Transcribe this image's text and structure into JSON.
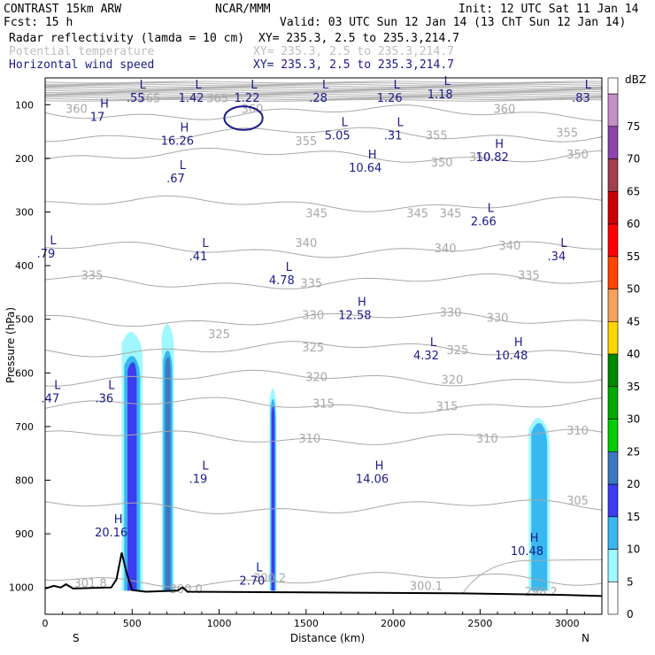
{
  "header": {
    "left1": "CONTRAST 15km ARW",
    "center1": "NCAR/MMM",
    "right1": "Init: 12 UTC Sat 11 Jan 14",
    "left2": "Fcst:    15 h",
    "right2": "Valid: 03 UTC Sun 12 Jan 14 (13 ChT Sun 12 Jan 14)",
    "fields": [
      {
        "name": "Radar reflectivity (lamda = 10 cm)",
        "xy": "XY= 235.3,  2.5 to 235.3,214.7",
        "color": "#000000"
      },
      {
        "name": "Potential temperature",
        "xy": "XY= 235.3,  2.5 to 235.3,214.7",
        "color": "#bdbdbd"
      },
      {
        "name": "Horizontal wind speed",
        "xy": "XY= 235.3,  2.5 to 235.3,214.7",
        "color": "#1a1a8c"
      }
    ]
  },
  "chart_data": {
    "type": "cross-section",
    "xlabel": "Distance (km)",
    "ylabel": "Pressure (hPa)",
    "xlim": [
      0,
      3200
    ],
    "ylim": [
      1050,
      50
    ],
    "x_ticks": [
      "0",
      "500",
      "1000",
      "1500",
      "2000",
      "2500",
      "3000"
    ],
    "y_ticks": [
      "100",
      "200",
      "300",
      "400",
      "500",
      "600",
      "700",
      "800",
      "900",
      "1000"
    ],
    "x_end_labels": {
      "left": "S",
      "right": "N"
    },
    "reflectivity_cells": [
      {
        "x": [
          440,
          560
        ],
        "top_hPa": 525,
        "core_top_hPa": 570,
        "colors": [
          "#9ff8ff",
          "#38b7f0",
          "#3c3cf0"
        ]
      },
      {
        "x": [
          670,
          740
        ],
        "top_hPa": 510,
        "core_top_hPa": 560,
        "colors": [
          "#9ff8ff",
          "#38b7f0",
          "#3c78c0"
        ]
      },
      {
        "x": [
          1290,
          1330
        ],
        "top_hPa": 630,
        "core_top_hPa": 650,
        "colors": [
          "#9ff8ff",
          "#38b7f0",
          "#3c3cf0"
        ]
      },
      {
        "x": [
          2780,
          2900
        ],
        "top_hPa": 685,
        "core_top_hPa": 695,
        "colors": [
          "#9ff8ff",
          "#38b7f0"
        ]
      }
    ],
    "theta_labels": [
      {
        "v": "360",
        "x": 180,
        "p": 115
      },
      {
        "v": "365",
        "x": 600,
        "p": 95
      },
      {
        "v": "365",
        "x": 990,
        "p": 95
      },
      {
        "v": "360",
        "x": 1190,
        "p": 115
      },
      {
        "v": "360",
        "x": 2640,
        "p": 115
      },
      {
        "v": "355",
        "x": 1500,
        "p": 175
      },
      {
        "v": "355",
        "x": 2250,
        "p": 165
      },
      {
        "v": "355",
        "x": 3000,
        "p": 160
      },
      {
        "v": "350",
        "x": 2280,
        "p": 215
      },
      {
        "v": "350",
        "x": 2500,
        "p": 205
      },
      {
        "v": "350",
        "x": 3060,
        "p": 200
      },
      {
        "v": "345",
        "x": 1560,
        "p": 310
      },
      {
        "v": "345",
        "x": 2140,
        "p": 310
      },
      {
        "v": "345",
        "x": 2330,
        "p": 310
      },
      {
        "v": "340",
        "x": 1500,
        "p": 365
      },
      {
        "v": "340",
        "x": 2300,
        "p": 375
      },
      {
        "v": "340",
        "x": 2670,
        "p": 370
      },
      {
        "v": "335",
        "x": 270,
        "p": 425
      },
      {
        "v": "335",
        "x": 1530,
        "p": 440
      },
      {
        "v": "335",
        "x": 2780,
        "p": 425
      },
      {
        "v": "330",
        "x": 1540,
        "p": 500
      },
      {
        "v": "330",
        "x": 2330,
        "p": 495
      },
      {
        "v": "330",
        "x": 2600,
        "p": 505
      },
      {
        "v": "325",
        "x": 1000,
        "p": 535
      },
      {
        "v": "325",
        "x": 1540,
        "p": 560
      },
      {
        "v": "325",
        "x": 2370,
        "p": 565
      },
      {
        "v": "320",
        "x": 1560,
        "p": 615
      },
      {
        "v": "320",
        "x": 2340,
        "p": 620
      },
      {
        "v": "315",
        "x": 1600,
        "p": 665
      },
      {
        "v": "315",
        "x": 2310,
        "p": 670
      },
      {
        "v": "310",
        "x": 1520,
        "p": 730
      },
      {
        "v": "310",
        "x": 2540,
        "p": 730
      },
      {
        "v": "310",
        "x": 3060,
        "p": 715
      },
      {
        "v": "305",
        "x": 3060,
        "p": 845
      },
      {
        "v": "301.8",
        "x": 260,
        "p": 1000
      },
      {
        "v": "300.0",
        "x": 810,
        "p": 1010
      },
      {
        "v": "300.2",
        "x": 1290,
        "p": 990
      },
      {
        "v": "300.1",
        "x": 2190,
        "p": 1005
      },
      {
        "v": "298.2",
        "x": 2850,
        "p": 1015
      }
    ],
    "wind_extrema": [
      {
        "type": "L",
        "v": ".55",
        "x": 520,
        "p": 70
      },
      {
        "type": "L",
        "v": "1.42",
        "x": 840,
        "p": 70
      },
      {
        "type": "L",
        "v": "1.22",
        "x": 1160,
        "p": 70
      },
      {
        "type": "L",
        "v": ".28",
        "x": 1570,
        "p": 70
      },
      {
        "type": "L",
        "v": "1.26",
        "x": 1980,
        "p": 70
      },
      {
        "type": "L",
        "v": "1.18",
        "x": 2270,
        "p": 63
      },
      {
        "type": "L",
        "v": ".83",
        "x": 3080,
        "p": 70
      },
      {
        "type": "H",
        "v": "17",
        "x": 300,
        "p": 105
      },
      {
        "type": "H",
        "v": "16.26",
        "x": 760,
        "p": 150
      },
      {
        "type": "L",
        "v": "5.05",
        "x": 1680,
        "p": 140
      },
      {
        "type": "L",
        "v": ".31",
        "x": 2000,
        "p": 140
      },
      {
        "type": "H",
        "v": "10.82",
        "x": 2570,
        "p": 180
      },
      {
        "type": "H",
        "v": "10.64",
        "x": 1840,
        "p": 200
      },
      {
        "type": "L",
        "v": ".67",
        "x": 750,
        "p": 220
      },
      {
        "type": "L",
        "v": "2.66",
        "x": 2520,
        "p": 300
      },
      {
        "type": "L",
        "v": ".79",
        "x": 5,
        "p": 360
      },
      {
        "type": "L",
        "v": ".41",
        "x": 880,
        "p": 365
      },
      {
        "type": "L",
        "v": ".34",
        "x": 2940,
        "p": 365
      },
      {
        "type": "L",
        "v": "4.78",
        "x": 1360,
        "p": 410
      },
      {
        "type": "H",
        "v": "12.58",
        "x": 1780,
        "p": 475
      },
      {
        "type": "L",
        "v": "4.32",
        "x": 2190,
        "p": 550
      },
      {
        "type": "H",
        "v": "10.48",
        "x": 2680,
        "p": 550
      },
      {
        "type": "L",
        "v": ".47",
        "x": 30,
        "p": 630
      },
      {
        "type": "L",
        "v": ".36",
        "x": 340,
        "p": 630
      },
      {
        "type": "L",
        "v": ".19",
        "x": 880,
        "p": 780
      },
      {
        "type": "H",
        "v": "14.06",
        "x": 1880,
        "p": 780
      },
      {
        "type": "H",
        "v": "20.16",
        "x": 380,
        "p": 880
      },
      {
        "type": "H",
        "v": "10.48",
        "x": 2770,
        "p": 915
      },
      {
        "type": "L",
        "v": "2.70",
        "x": 1190,
        "p": 970
      }
    ],
    "wind_closed_contour": {
      "x_center": 1140,
      "p_center": 125,
      "x_radius": 110,
      "p_radius": 22
    },
    "terrain": [
      [
        0,
        1002
      ],
      [
        50,
        997
      ],
      [
        90,
        1000
      ],
      [
        120,
        994
      ],
      [
        160,
        1002
      ],
      [
        380,
        1000
      ],
      [
        410,
        985
      ],
      [
        440,
        935
      ],
      [
        470,
        975
      ],
      [
        500,
        1005
      ],
      [
        580,
        1008
      ],
      [
        760,
        1006
      ],
      [
        790,
        1000
      ],
      [
        820,
        1008
      ],
      [
        1500,
        1009
      ],
      [
        2400,
        1011
      ],
      [
        3000,
        1014
      ],
      [
        3200,
        1016
      ]
    ],
    "legend": {
      "unit": "dBZ",
      "levels": [
        "0",
        "5",
        "10",
        "15",
        "20",
        "25",
        "30",
        "35",
        "40",
        "45",
        "50",
        "55",
        "60",
        "65",
        "70",
        "75"
      ],
      "colors": [
        "#ffffff",
        "#9ff8ff",
        "#38b7f0",
        "#3c3cf0",
        "#3c78c0",
        "#00cc00",
        "#00aa00",
        "#008800",
        "#ffd700",
        "#f5a25d",
        "#ff4500",
        "#ff0000",
        "#cc0000",
        "#a04050",
        "#8e44ad",
        "#c58fc8"
      ]
    }
  }
}
